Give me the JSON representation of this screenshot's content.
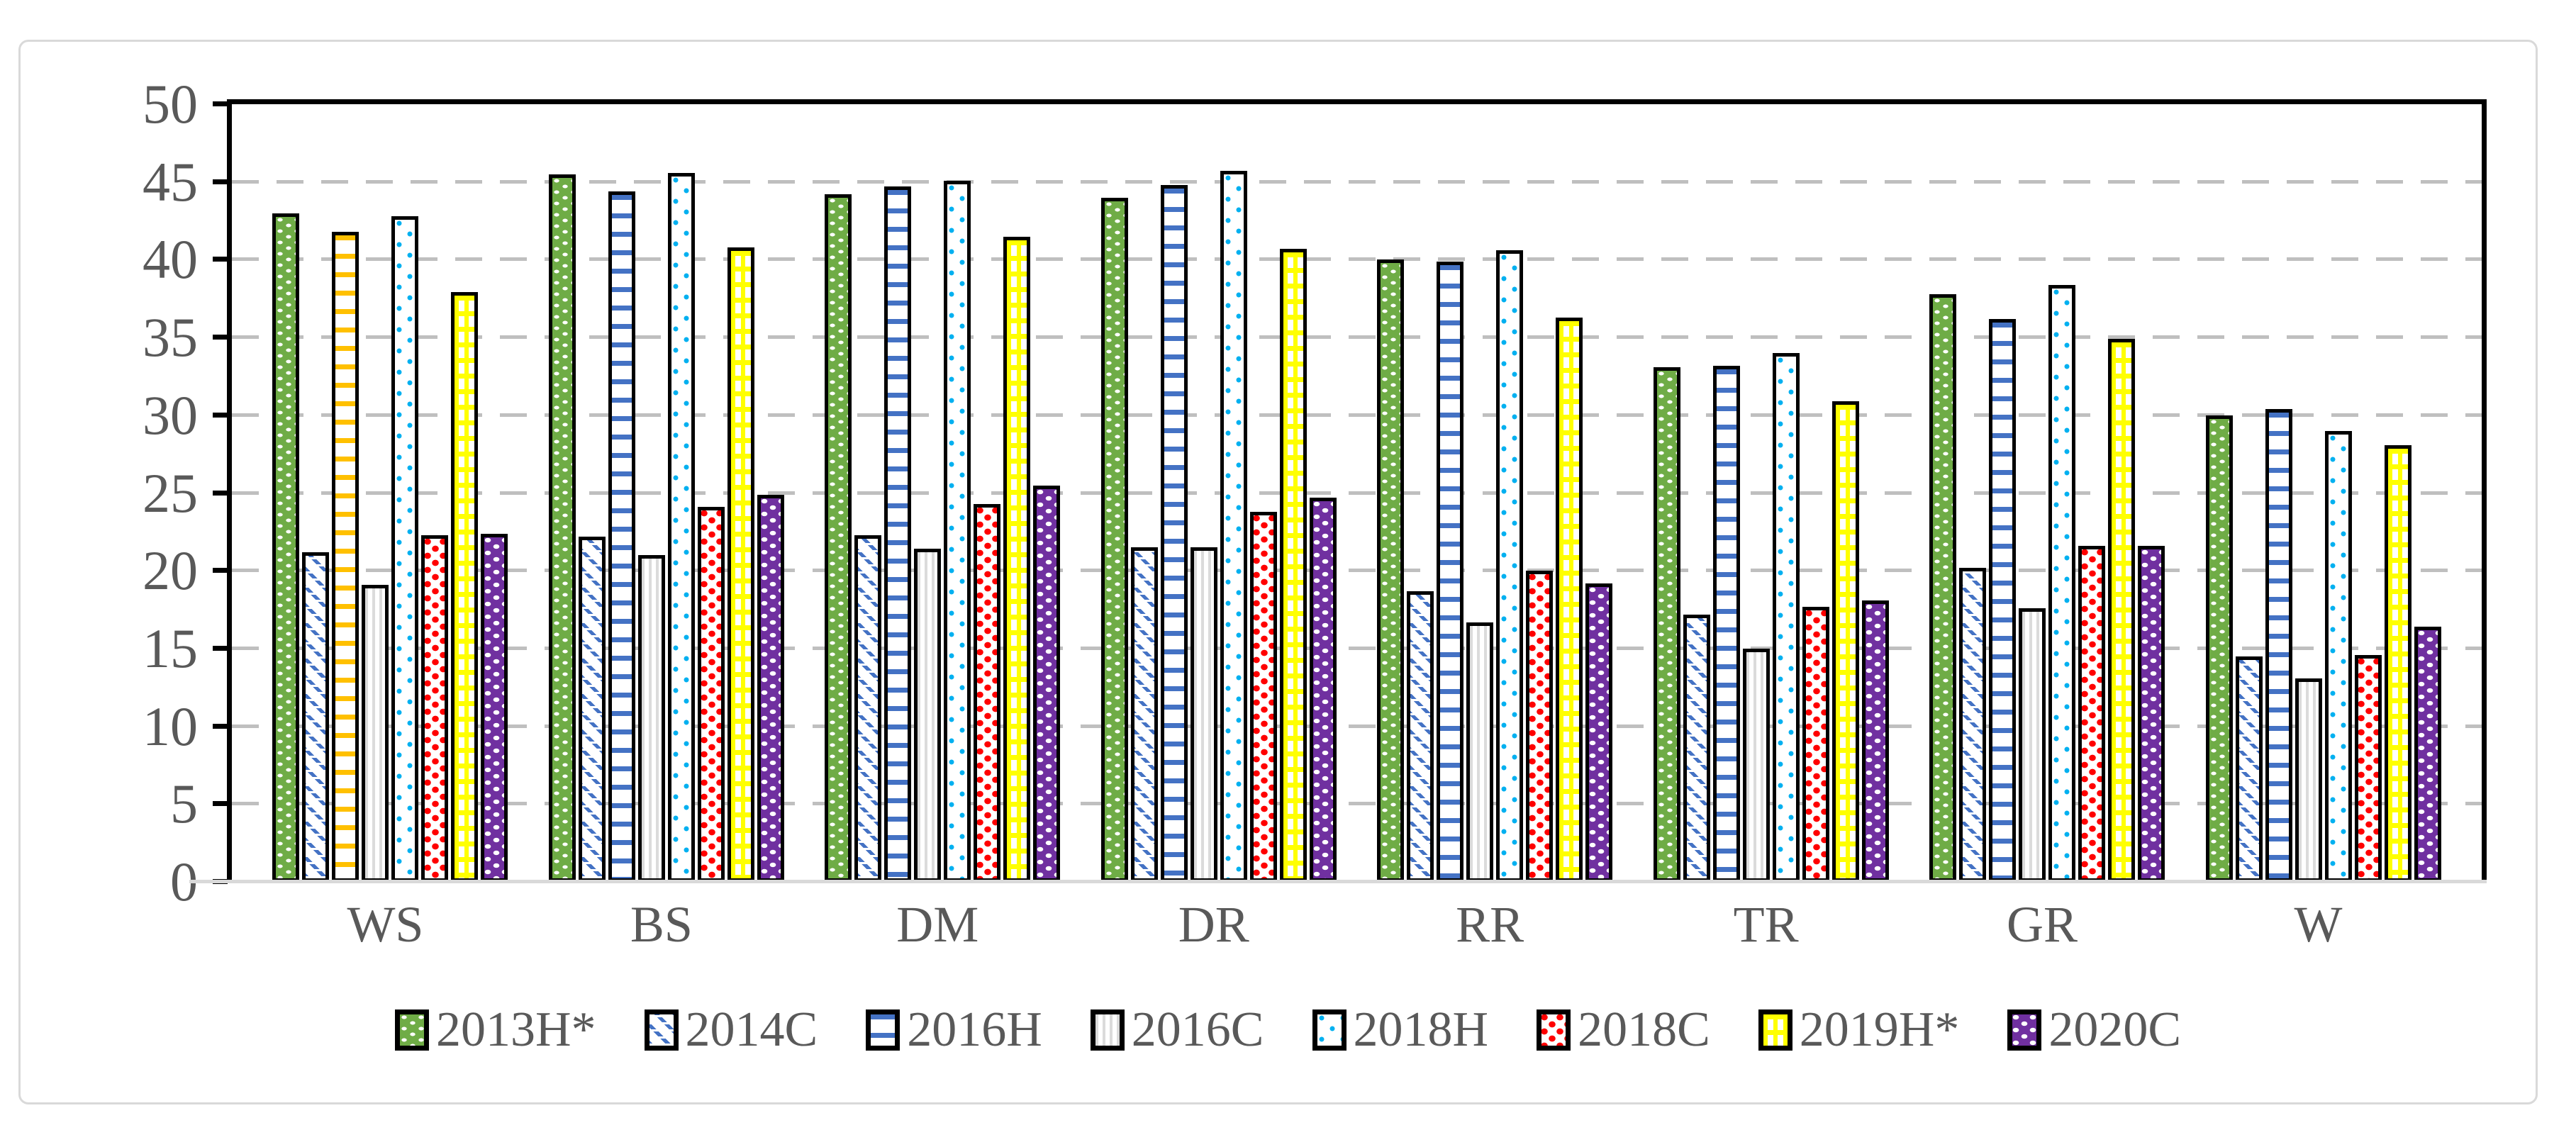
{
  "chart_data": {
    "type": "bar",
    "title": "",
    "xlabel": "",
    "ylabel": "",
    "grid": "dashed-horizontal",
    "legend_position": "bottom",
    "y_axis": {
      "min": 0,
      "max": 50,
      "step": 5,
      "tick_labels": [
        "0",
        "5",
        "10",
        "15",
        "20",
        "25",
        "30",
        "35",
        "40",
        "45",
        "50"
      ]
    },
    "categories": [
      "WS",
      "BS",
      "DM",
      "DR",
      "RR",
      "TR",
      "GR",
      "W"
    ],
    "series": [
      {
        "name": "2013H*",
        "pattern": "green-dots",
        "color": "#6FAC46",
        "values": [
          43.0,
          45.5,
          44.2,
          44.0,
          40.0,
          33.1,
          37.8,
          30.0
        ]
      },
      {
        "name": "2014C",
        "pattern": "blue-diagonal",
        "color": "#4472C4",
        "values": [
          21.2,
          22.2,
          22.3,
          21.5,
          18.7,
          17.2,
          20.2,
          14.5
        ]
      },
      {
        "name": "2016H",
        "pattern": "blue-hstripes",
        "color": "#4472C4",
        "values": [
          41.8,
          44.4,
          44.7,
          44.8,
          39.9,
          33.2,
          36.2,
          30.4
        ]
      },
      {
        "name": "2016C",
        "pattern": "gray-vstripes",
        "color": "#D9D9D9",
        "values": [
          19.1,
          21.0,
          21.4,
          21.5,
          16.7,
          15.0,
          17.6,
          13.1
        ]
      },
      {
        "name": "2018H",
        "pattern": "cyan-dots",
        "color": "#00B0F0",
        "values": [
          42.8,
          45.6,
          45.1,
          45.7,
          40.6,
          34.0,
          38.4,
          29.0
        ]
      },
      {
        "name": "2018C",
        "pattern": "red-checks",
        "color": "#FF0000",
        "values": [
          22.3,
          24.1,
          24.3,
          23.8,
          20.0,
          17.7,
          21.6,
          14.6
        ]
      },
      {
        "name": "2019H*",
        "pattern": "yellow-grid",
        "color": "#FFFF00",
        "values": [
          37.9,
          40.8,
          41.5,
          40.7,
          36.3,
          30.9,
          34.9,
          28.1
        ]
      },
      {
        "name": "2020C",
        "pattern": "purple-weave",
        "color": "#7030A0",
        "values": [
          22.4,
          24.9,
          25.5,
          24.7,
          19.2,
          18.1,
          21.6,
          16.4
        ]
      }
    ],
    "pattern_overrides": [
      {
        "category": "WS",
        "series": "2016H",
        "pattern": "orange-hstripes",
        "color": "#FFC000"
      }
    ]
  },
  "style_colors": {
    "axis_text": "#595959",
    "gridline": "#BFBFBF",
    "plot_frame": "#000000",
    "category_axis_line": "#D9D9D9",
    "chart_border": "#D9D9D9"
  }
}
